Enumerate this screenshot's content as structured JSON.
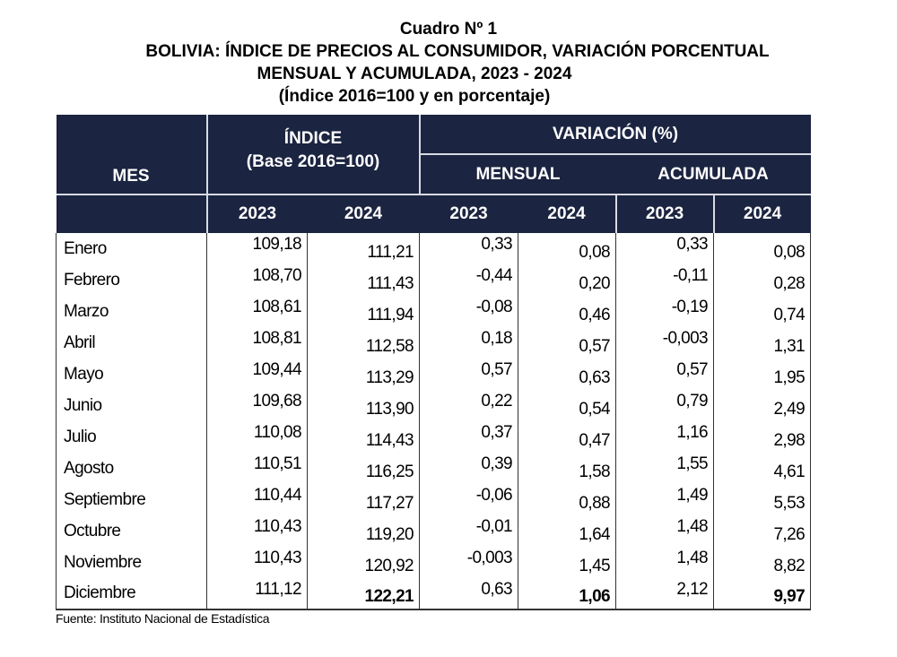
{
  "title": {
    "line1": "Cuadro Nº 1",
    "line2": "BOLIVIA: ÍNDICE DE PRECIOS AL CONSUMIDOR, VARIACIÓN PORCENTUAL",
    "line3": "MENSUAL Y ACUMULADA, 2023 - 2024",
    "line4": "(Índice 2016=100 y en porcentaje)"
  },
  "header": {
    "mes": "MES",
    "indice": "ÍNDICE",
    "indice_base": "(Base 2016=100)",
    "variacion": "VARIACIÓN (%)",
    "mensual": "MENSUAL",
    "acumulada": "ACUMULADA",
    "years": [
      "2023",
      "2024",
      "2023",
      "2024",
      "2023",
      "2024"
    ]
  },
  "rows": [
    {
      "mes": "Enero",
      "idx_2023": "109,18",
      "idx_2024": "111,21",
      "men_2023": "0,33",
      "men_2024": "0,08",
      "acu_2023": "0,33",
      "acu_2024": "0,08"
    },
    {
      "mes": "Febrero",
      "idx_2023": "108,70",
      "idx_2024": "111,43",
      "men_2023": "-0,44",
      "men_2024": "0,20",
      "acu_2023": "-0,11",
      "acu_2024": "0,28"
    },
    {
      "mes": "Marzo",
      "idx_2023": "108,61",
      "idx_2024": "111,94",
      "men_2023": "-0,08",
      "men_2024": "0,46",
      "acu_2023": "-0,19",
      "acu_2024": "0,74"
    },
    {
      "mes": "Abril",
      "idx_2023": "108,81",
      "idx_2024": "112,58",
      "men_2023": "0,18",
      "men_2024": "0,57",
      "acu_2023": "-0,003",
      "acu_2024": "1,31"
    },
    {
      "mes": "Mayo",
      "idx_2023": "109,44",
      "idx_2024": "113,29",
      "men_2023": "0,57",
      "men_2024": "0,63",
      "acu_2023": "0,57",
      "acu_2024": "1,95"
    },
    {
      "mes": "Junio",
      "idx_2023": "109,68",
      "idx_2024": "113,90",
      "men_2023": "0,22",
      "men_2024": "0,54",
      "acu_2023": "0,79",
      "acu_2024": "2,49"
    },
    {
      "mes": "Julio",
      "idx_2023": "110,08",
      "idx_2024": "114,43",
      "men_2023": "0,37",
      "men_2024": "0,47",
      "acu_2023": "1,16",
      "acu_2024": "2,98"
    },
    {
      "mes": "Agosto",
      "idx_2023": "110,51",
      "idx_2024": "116,25",
      "men_2023": "0,39",
      "men_2024": "1,58",
      "acu_2023": "1,55",
      "acu_2024": "4,61"
    },
    {
      "mes": "Septiembre",
      "idx_2023": "110,44",
      "idx_2024": "117,27",
      "men_2023": "-0,06",
      "men_2024": "0,88",
      "acu_2023": "1,49",
      "acu_2024": "5,53"
    },
    {
      "mes": "Octubre",
      "idx_2023": "110,43",
      "idx_2024": "119,20",
      "men_2023": "-0,01",
      "men_2024": "1,64",
      "acu_2023": "1,48",
      "acu_2024": "7,26"
    },
    {
      "mes": "Noviembre",
      "idx_2023": "110,43",
      "idx_2024": "120,92",
      "men_2023": "-0,003",
      "men_2024": "1,45",
      "acu_2023": "1,48",
      "acu_2024": "8,82"
    },
    {
      "mes": "Diciembre",
      "idx_2023": "111,12",
      "idx_2024": "122,21",
      "men_2023": "0,63",
      "men_2024": "1,06",
      "acu_2023": "2,12",
      "acu_2024": "9,97"
    }
  ],
  "source": "Fuente: Instituto Nacional de Estadística",
  "colors": {
    "header_bg": "#1b2440",
    "header_text": "#ffffff"
  }
}
